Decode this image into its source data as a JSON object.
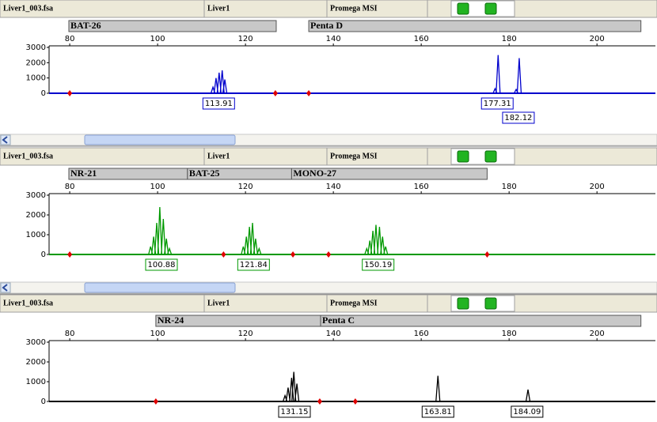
{
  "panels": [
    {
      "header": {
        "file": "Liver1_003.fsa",
        "sample": "Liver1",
        "panel": "Promega MSI"
      },
      "markers": [
        {
          "name": "BAT-26",
          "start": 79.8,
          "end": 127
        },
        {
          "name": "Penta D",
          "start": 134.4,
          "end": 210
        }
      ],
      "xlim": [
        75.3,
        213.3
      ],
      "xticks": [
        80,
        100,
        120,
        140,
        160,
        180,
        200
      ],
      "ylim": [
        0,
        3000
      ],
      "yticks": [
        0,
        1000,
        2000,
        3000
      ],
      "color": "#0000cc",
      "reference_points": [
        80,
        126.8,
        134.4
      ],
      "peaks": [
        {
          "label": 113.91,
          "spikes": {
            "x": [
              112.6,
              113.3,
              114.0,
              114.7,
              115.3
            ],
            "y": [
              400,
              1000,
              1350,
              1500,
              900
            ]
          }
        },
        {
          "label": 177.31,
          "spikes": {
            "x": [
              176.8,
              177.5
            ],
            "y": [
              300,
              2500
            ]
          }
        },
        {
          "label": 182.12,
          "spikes": {
            "x": [
              181.6,
              182.3
            ],
            "y": [
              250,
              2300
            ]
          }
        }
      ]
    },
    {
      "header": {
        "file": "Liver1_003.fsa",
        "sample": "Liver1",
        "panel": "Promega MSI"
      },
      "markers": [
        {
          "name": "NR-21",
          "start": 79.8,
          "end": 106.8
        },
        {
          "name": "BAT-25",
          "start": 106.8,
          "end": 130.5
        },
        {
          "name": "MONO-27",
          "start": 130.5,
          "end": 175
        }
      ],
      "xlim": [
        75.3,
        213.3
      ],
      "xticks": [
        80,
        100,
        120,
        140,
        160,
        180,
        200
      ],
      "ylim": [
        0,
        3000
      ],
      "yticks": [
        0,
        1000,
        2000,
        3000
      ],
      "color": "#009900",
      "reference_points": [
        80,
        115,
        130.8,
        138.9,
        175
      ],
      "peaks": [
        {
          "label": 100.88,
          "spikes": {
            "x": [
              98.4,
              99.1,
              99.8,
              100.5,
              101.3,
              102.0,
              102.7
            ],
            "y": [
              400,
              900,
              1600,
              2400,
              1800,
              800,
              300
            ]
          }
        },
        {
          "label": 121.84,
          "spikes": {
            "x": [
              119.5,
              120.2,
              120.9,
              121.6,
              122.3,
              123.1
            ],
            "y": [
              400,
              900,
              1400,
              1600,
              800,
              300
            ]
          }
        },
        {
          "label": 150.19,
          "spikes": {
            "x": [
              147.6,
              148.3,
              149.0,
              149.7,
              150.5,
              151.2,
              151.9
            ],
            "y": [
              300,
              700,
              1200,
              1500,
              1400,
              900,
              400
            ]
          }
        }
      ]
    },
    {
      "header": {
        "file": "Liver1_003.fsa",
        "sample": "Liver1",
        "panel": "Promega MSI"
      },
      "markers": [
        {
          "name": "NR-24",
          "start": 99.6,
          "end": 137.1
        },
        {
          "name": "Penta C",
          "start": 137.1,
          "end": 210
        }
      ],
      "xlim": [
        75.3,
        213.3
      ],
      "xticks": [
        80,
        100,
        120,
        140,
        160,
        180,
        200
      ],
      "ylim": [
        0,
        3000
      ],
      "yticks": [
        0,
        1000,
        2000,
        3000
      ],
      "color": "#000000",
      "reference_points": [
        99.6,
        136.9,
        145
      ],
      "peaks": [
        {
          "label": 131.15,
          "spikes": {
            "x": [
              129.0,
              129.7,
              130.5,
              131.0,
              131.7
            ],
            "y": [
              300,
              700,
              1200,
              1500,
              900
            ]
          }
        },
        {
          "label": 163.81,
          "spikes": {
            "x": [
              163.8
            ],
            "y": [
              1300
            ]
          }
        },
        {
          "label": 184.09,
          "spikes": {
            "x": [
              184.3
            ],
            "y": [
              600
            ]
          }
        }
      ]
    }
  ]
}
